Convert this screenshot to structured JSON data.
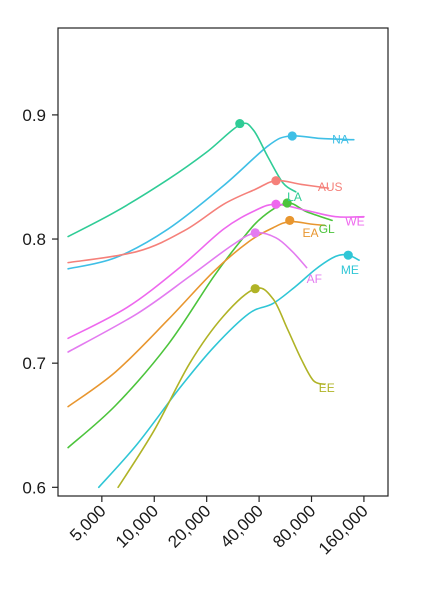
{
  "chart_data": {
    "type": "line",
    "title": "",
    "xlabel": "",
    "ylabel": "",
    "x_scale": "log2",
    "xlim": [
      2800,
      220000
    ],
    "ylim": [
      0.593,
      0.97
    ],
    "x_ticks": [
      5000,
      10000,
      20000,
      40000,
      80000,
      160000
    ],
    "x_tick_labels": [
      "5,000",
      "10,000",
      "20,000",
      "40,000",
      "80,000",
      "160,000"
    ],
    "y_ticks": [
      0.6,
      0.7,
      0.8,
      0.9
    ],
    "y_tick_labels": [
      "0.6",
      "0.7",
      "0.8",
      "0.9"
    ],
    "grid": false,
    "legend": "direct labels",
    "series": [
      {
        "name": "NA",
        "color": "#3fbfe6",
        "points": [
          [
            3200,
            0.776
          ],
          [
            6000,
            0.785
          ],
          [
            12000,
            0.808
          ],
          [
            25000,
            0.843
          ],
          [
            45000,
            0.875
          ],
          [
            60000,
            0.883
          ],
          [
            90000,
            0.881
          ],
          [
            140000,
            0.88
          ]
        ],
        "peak": [
          62000,
          0.883
        ],
        "label_at": [
          105000,
          0.88
        ]
      },
      {
        "name": "LA",
        "color": "#2fcc96",
        "points": [
          [
            3200,
            0.802
          ],
          [
            6000,
            0.822
          ],
          [
            12000,
            0.848
          ],
          [
            20000,
            0.87
          ],
          [
            31000,
            0.892
          ],
          [
            37000,
            0.888
          ],
          [
            45000,
            0.866
          ],
          [
            55000,
            0.845
          ],
          [
            65000,
            0.838
          ]
        ],
        "peak": [
          31000,
          0.893
        ],
        "label_at": [
          58000,
          0.834
        ]
      },
      {
        "name": "AUS",
        "color": "#f5807a",
        "points": [
          [
            3200,
            0.781
          ],
          [
            8000,
            0.79
          ],
          [
            15000,
            0.807
          ],
          [
            25000,
            0.828
          ],
          [
            38000,
            0.84
          ],
          [
            50000,
            0.847
          ],
          [
            70000,
            0.844
          ],
          [
            100000,
            0.841
          ]
        ],
        "peak": [
          50000,
          0.847
        ],
        "label_at": [
          87000,
          0.842
        ]
      },
      {
        "name": "GL",
        "color": "#4cc43c",
        "points": [
          [
            3200,
            0.632
          ],
          [
            6000,
            0.666
          ],
          [
            12000,
            0.715
          ],
          [
            22000,
            0.77
          ],
          [
            32000,
            0.8
          ],
          [
            42000,
            0.818
          ],
          [
            58000,
            0.829
          ],
          [
            75000,
            0.822
          ],
          [
            105000,
            0.815
          ]
        ],
        "peak": [
          58000,
          0.829
        ],
        "label_at": [
          88000,
          0.808
        ]
      },
      {
        "name": "WE",
        "color": "#ee68ee",
        "points": [
          [
            3200,
            0.72
          ],
          [
            7000,
            0.745
          ],
          [
            14000,
            0.777
          ],
          [
            25000,
            0.808
          ],
          [
            38000,
            0.823
          ],
          [
            50000,
            0.828
          ],
          [
            75000,
            0.823
          ],
          [
            110000,
            0.818
          ],
          [
            160000,
            0.818
          ]
        ],
        "peak": [
          50000,
          0.828
        ],
        "label_at": [
          125000,
          0.814
        ]
      },
      {
        "name": "EA",
        "color": "#e8962f",
        "points": [
          [
            3200,
            0.665
          ],
          [
            6000,
            0.693
          ],
          [
            12000,
            0.735
          ],
          [
            22000,
            0.774
          ],
          [
            35000,
            0.798
          ],
          [
            48000,
            0.809
          ],
          [
            60000,
            0.814
          ],
          [
            80000,
            0.812
          ],
          [
            95000,
            0.811
          ]
        ],
        "peak": [
          60000,
          0.815
        ],
        "label_at": [
          71000,
          0.805
        ]
      },
      {
        "name": "AF",
        "color": "#e37bf0",
        "points": [
          [
            3200,
            0.709
          ],
          [
            8000,
            0.74
          ],
          [
            16000,
            0.77
          ],
          [
            28000,
            0.795
          ],
          [
            38000,
            0.805
          ],
          [
            50000,
            0.801
          ],
          [
            62000,
            0.79
          ],
          [
            75000,
            0.777
          ]
        ],
        "peak": [
          38000,
          0.805
        ],
        "label_at": [
          75000,
          0.768
        ]
      },
      {
        "name": "ME",
        "color": "#2fc6d6",
        "points": [
          [
            4800,
            0.6
          ],
          [
            8000,
            0.635
          ],
          [
            14000,
            0.68
          ],
          [
            22000,
            0.713
          ],
          [
            35000,
            0.74
          ],
          [
            48000,
            0.748
          ],
          [
            65000,
            0.762
          ],
          [
            85000,
            0.776
          ],
          [
            110000,
            0.786
          ],
          [
            130000,
            0.787
          ],
          [
            150000,
            0.783
          ]
        ],
        "peak": [
          130000,
          0.787
        ],
        "label_at": [
          118000,
          0.775
        ]
      },
      {
        "name": "EE",
        "color": "#b0b326",
        "points": [
          [
            6200,
            0.6
          ],
          [
            10000,
            0.646
          ],
          [
            16000,
            0.7
          ],
          [
            25000,
            0.738
          ],
          [
            38000,
            0.76
          ],
          [
            48000,
            0.752
          ],
          [
            58000,
            0.728
          ],
          [
            70000,
            0.703
          ],
          [
            82000,
            0.686
          ],
          [
            95000,
            0.683
          ]
        ],
        "peak": [
          38000,
          0.76
        ],
        "label_at": [
          88000,
          0.68
        ]
      }
    ]
  }
}
